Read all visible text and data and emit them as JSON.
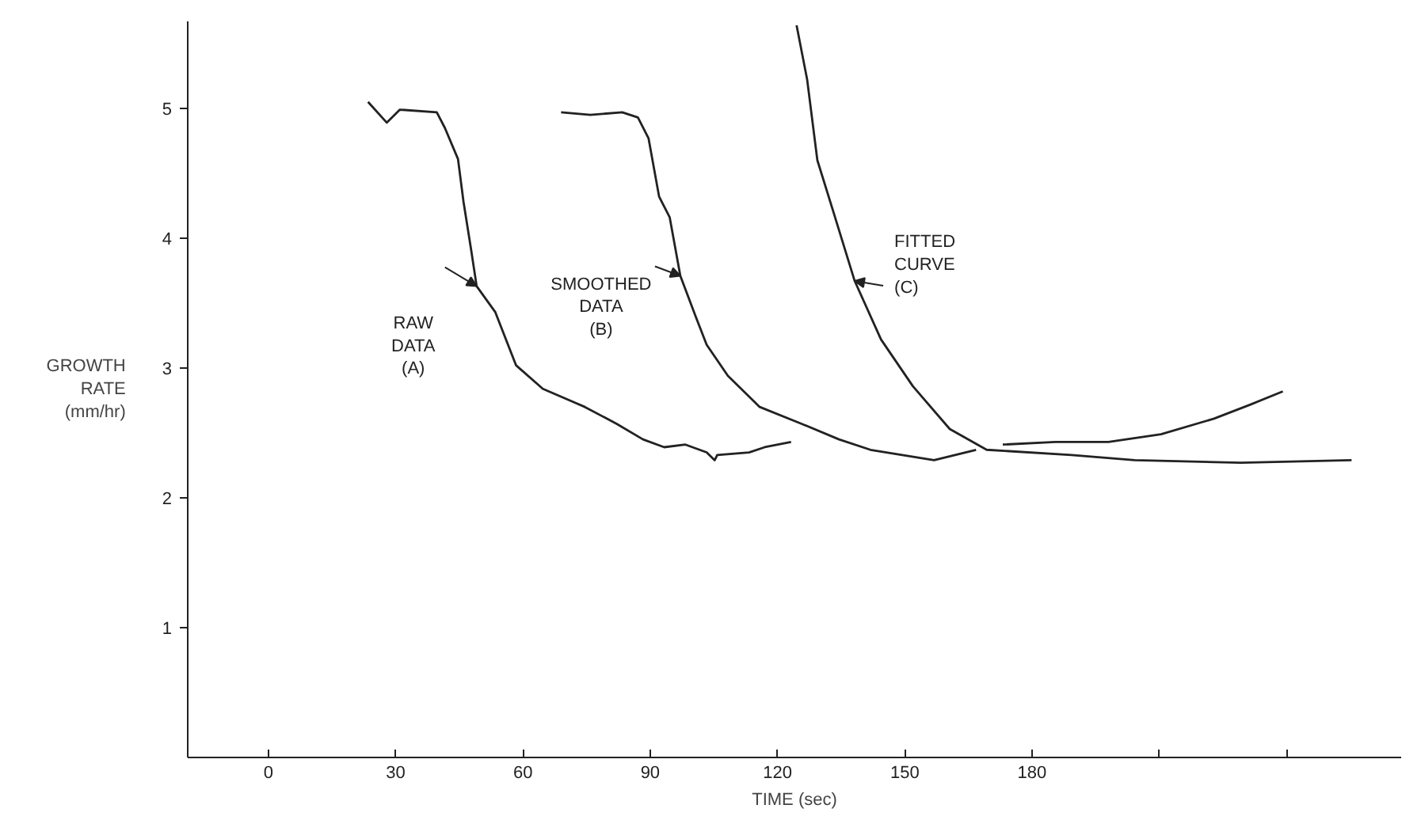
{
  "chart_data": {
    "type": "line",
    "xlabel": "TIME (sec)",
    "ylabel": "GROWTH\nRATE\n(mm/hr)",
    "xlim": [
      -19,
      267
    ],
    "ylim": [
      0,
      5.67
    ],
    "xticks": [
      0,
      30,
      60,
      90,
      120,
      150,
      180,
      {
        "value": 210,
        "label": null
      },
      {
        "value": 240,
        "label": null
      }
    ],
    "yticks": [
      1,
      2,
      3,
      4,
      5
    ],
    "grid": false,
    "marker": "none",
    "line_style": "solid",
    "series": [
      {
        "color": "#222222",
        "x": [
          23.5,
          27.9,
          31.0,
          39.7,
          41.6,
          44.7,
          46.0,
          47.8,
          49.1,
          53.5,
          58.4,
          64.7,
          74.6,
          82.1,
          88.3,
          93.3,
          98.3,
          103.3,
          105.2,
          105.8,
          113.3,
          117,
          123.2
        ],
        "values": [
          5.05,
          4.89,
          4.99,
          4.97,
          4.85,
          4.61,
          4.28,
          3.91,
          3.63,
          3.43,
          3.02,
          2.84,
          2.7,
          2.57,
          2.45,
          2.39,
          2.41,
          2.35,
          2.29,
          2.33,
          2.35,
          2.39,
          2.43
        ]
      },
      {
        "color": "#222222",
        "x": [
          69.0,
          75.9,
          83.4,
          87.1,
          89.6,
          92.1,
          94.6,
          97.1,
          100.8,
          103.3,
          108.3,
          115.8,
          125.7,
          134.5,
          141.9,
          156.9,
          166.8,
          170,
          173.1,
          185.5,
          198,
          210.4,
          222.9,
          231.6,
          239.1
        ],
        "values": [
          4.97,
          4.95,
          4.97,
          4.93,
          4.77,
          4.32,
          4.16,
          3.71,
          3.39,
          3.18,
          2.94,
          2.7,
          2.57,
          2.45,
          2.37,
          2.29,
          2.37,
          null,
          2.41,
          2.43,
          2.43,
          2.49,
          2.61,
          2.72,
          2.82
        ]
      },
      {
        "color": "#222222",
        "x": [
          124.5,
          127,
          129.4,
          133.2,
          138.2,
          144.4,
          151.9,
          160.6,
          169.3,
          189.3,
          204.2,
          229.2,
          255.3
        ],
        "values": [
          5.64,
          5.22,
          4.6,
          4.2,
          3.67,
          3.22,
          2.86,
          2.53,
          2.37,
          2.33,
          2.29,
          2.27,
          2.29
        ]
      }
    ],
    "annotations": [
      {
        "text": "RAW\nDATA\n(A)",
        "x": 49.1,
        "y": 3.63
      },
      {
        "text": "SMOOTHED\nDATA\n(B)",
        "x": 97.1,
        "y": 3.71
      },
      {
        "text": "FITTED\nCURVE\n(C)",
        "x": 138.2,
        "y": 3.67
      }
    ]
  }
}
